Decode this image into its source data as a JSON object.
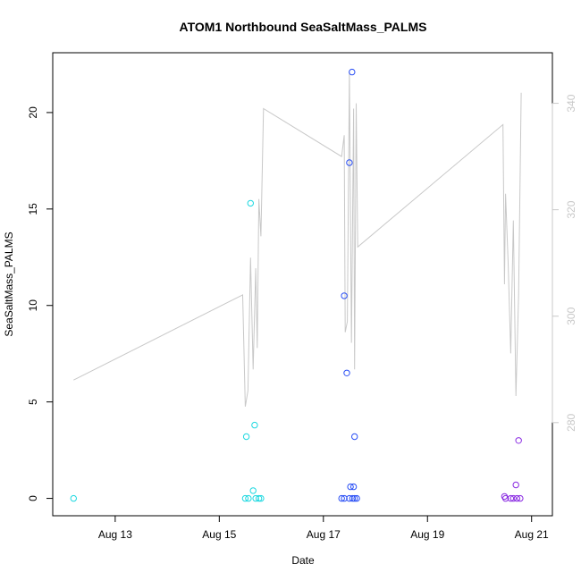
{
  "chart_data": {
    "type": "scatter",
    "title": "ATOM1 Northbound SeaSaltMass_PALMS",
    "xlabel": "Date",
    "ylabel": "SeaSaltMass_PALMS",
    "x_ticks": [
      "Aug 13",
      "Aug 15",
      "Aug 17",
      "Aug 19",
      "Aug 21"
    ],
    "x_tick_days": [
      13,
      15,
      17,
      19,
      21
    ],
    "xlim": [
      11.8,
      21.4
    ],
    "y_ticks": [
      0,
      5,
      10,
      15,
      20
    ],
    "ylim": [
      -0.9,
      23.1
    ],
    "y2_ticks": [
      280,
      300,
      320,
      340
    ],
    "y2lim": [
      262.5,
      349.5
    ],
    "grid": false,
    "legend": "none",
    "colors": {
      "right_axis": "#c8c8c8",
      "line": "#c8c8c8"
    },
    "series": [
      {
        "color": "#1ed8e0",
        "points": [
          {
            "x": 12.2,
            "y": 0.0
          },
          {
            "x": 15.52,
            "y": 3.2
          },
          {
            "x": 15.6,
            "y": 15.3
          },
          {
            "x": 15.68,
            "y": 3.8
          },
          {
            "x": 15.65,
            "y": 0.4
          },
          {
            "x": 15.5,
            "y": 0.0
          },
          {
            "x": 15.56,
            "y": 0.0
          },
          {
            "x": 15.7,
            "y": 0.0
          },
          {
            "x": 15.76,
            "y": 0.0
          },
          {
            "x": 15.8,
            "y": 0.0
          }
        ]
      },
      {
        "color": "#2a4ff5",
        "points": [
          {
            "x": 17.4,
            "y": 10.5
          },
          {
            "x": 17.45,
            "y": 6.5
          },
          {
            "x": 17.5,
            "y": 17.4
          },
          {
            "x": 17.55,
            "y": 22.1
          },
          {
            "x": 17.6,
            "y": 3.2
          },
          {
            "x": 17.52,
            "y": 0.6
          },
          {
            "x": 17.58,
            "y": 0.6
          },
          {
            "x": 17.35,
            "y": 0.0
          },
          {
            "x": 17.4,
            "y": 0.0
          },
          {
            "x": 17.5,
            "y": 0.0
          },
          {
            "x": 17.56,
            "y": 0.0
          },
          {
            "x": 17.6,
            "y": 0.0
          },
          {
            "x": 17.64,
            "y": 0.0
          }
        ]
      },
      {
        "color": "#8a2be2",
        "points": [
          {
            "x": 20.48,
            "y": 0.1
          },
          {
            "x": 20.5,
            "y": 0.0
          },
          {
            "x": 20.6,
            "y": 0.0
          },
          {
            "x": 20.65,
            "y": 0.0
          },
          {
            "x": 20.7,
            "y": 0.7
          },
          {
            "x": 20.72,
            "y": 0.0
          },
          {
            "x": 20.75,
            "y": 3.0
          },
          {
            "x": 20.78,
            "y": 0.0
          }
        ]
      }
    ],
    "line_series": {
      "axis": "right",
      "color": "#c8c8c8",
      "points": [
        {
          "x": 12.2,
          "y": 288
        },
        {
          "x": 15.45,
          "y": 304
        },
        {
          "x": 15.5,
          "y": 283
        },
        {
          "x": 15.55,
          "y": 286
        },
        {
          "x": 15.6,
          "y": 311
        },
        {
          "x": 15.65,
          "y": 290
        },
        {
          "x": 15.7,
          "y": 309
        },
        {
          "x": 15.73,
          "y": 294
        },
        {
          "x": 15.76,
          "y": 322
        },
        {
          "x": 15.8,
          "y": 315
        },
        {
          "x": 15.85,
          "y": 339
        },
        {
          "x": 17.35,
          "y": 330
        },
        {
          "x": 17.4,
          "y": 334
        },
        {
          "x": 17.42,
          "y": 297
        },
        {
          "x": 17.46,
          "y": 299
        },
        {
          "x": 17.5,
          "y": 346
        },
        {
          "x": 17.54,
          "y": 295
        },
        {
          "x": 17.58,
          "y": 339
        },
        {
          "x": 17.6,
          "y": 290
        },
        {
          "x": 17.63,
          "y": 340
        },
        {
          "x": 17.66,
          "y": 313
        },
        {
          "x": 20.45,
          "y": 336
        },
        {
          "x": 20.48,
          "y": 306
        },
        {
          "x": 20.5,
          "y": 323
        },
        {
          "x": 20.55,
          "y": 310
        },
        {
          "x": 20.6,
          "y": 293
        },
        {
          "x": 20.65,
          "y": 318
        },
        {
          "x": 20.7,
          "y": 285
        },
        {
          "x": 20.75,
          "y": 304
        },
        {
          "x": 20.8,
          "y": 342
        }
      ]
    }
  }
}
